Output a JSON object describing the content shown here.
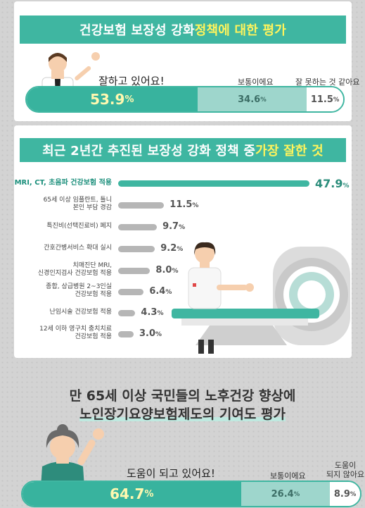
{
  "section1": {
    "title_main": "건강보험 보장성 강화 ",
    "title_highlight": "정책에 대한 평가",
    "labels": {
      "good": "잘하고 있어요!",
      "normal": "보통이에요",
      "bad": "잘 못하는 것 같아요"
    }
  },
  "section2": {
    "title_main": "최근 2년간 추진된 보장성 강화 정책 중 ",
    "title_highlight": "가장 잘한 것"
  },
  "section3": {
    "title_line1": "만 65세 이상 국민들의 노후건강 향상에",
    "title_line2": "노인장기요양보험제도의 기여도 평가",
    "labels": {
      "good": "도움이 되고 있어요!",
      "normal": "보통이에요",
      "bad_line1": "도움이",
      "bad_line2": "되지 않아요"
    }
  },
  "colors": {
    "teal": "#3fb6a1",
    "light_teal": "#9ed6cc",
    "highlight_yellow": "#fff45c",
    "bar_gray": "#b6b6b6"
  },
  "chart_data": [
    {
      "type": "bar",
      "title": "건강보험 보장성 강화 정책에 대한 평가",
      "stacked": true,
      "categories": [
        "잘하고 있어요!",
        "보통이에요",
        "잘 못하는 것 같아요"
      ],
      "values": [
        53.9,
        34.6,
        11.5
      ],
      "value_labels": [
        "53.9",
        "34.6",
        "11.5"
      ],
      "unit": "%"
    },
    {
      "type": "bar",
      "orientation": "horizontal",
      "title": "최근 2년간 추진된 보장성 강화 정책 중 가장 잘한 것",
      "categories": [
        [
          "MRI, CT, 초음파 건강보험 적용"
        ],
        [
          "65세 이상 임플란트, 틀니",
          "본인 부담 경감"
        ],
        [
          "특진비(선택진료비) 폐지"
        ],
        [
          "간호간병서비스 확대 실시"
        ],
        [
          "치매진단 MRI,",
          "신경인지검사 건강보험 적용"
        ],
        [
          "종합, 상급병원 2~3인실",
          "건강보험 적용"
        ],
        [
          "난임시술 건강보험 적용"
        ],
        [
          "12세 이하 영구치 충치치료",
          "건강보험 적용"
        ]
      ],
      "values": [
        47.9,
        11.5,
        9.7,
        9.2,
        8.0,
        6.4,
        4.3,
        3.0
      ],
      "value_labels": [
        "47.9",
        "11.5",
        "9.7",
        "9.2",
        "8.0",
        "6.4",
        "4.3",
        "3.0"
      ],
      "unit": "%"
    },
    {
      "type": "bar",
      "title": "만 65세 이상 국민들의 노후건강 향상에 노인장기요양보험제도의 기여도 평가",
      "stacked": true,
      "categories": [
        "도움이 되고 있어요!",
        "보통이에요",
        "도움이 되지 않아요"
      ],
      "values": [
        64.7,
        26.4,
        8.9
      ],
      "value_labels": [
        "64.7",
        "26.4",
        "8.9"
      ],
      "unit": "%"
    }
  ]
}
